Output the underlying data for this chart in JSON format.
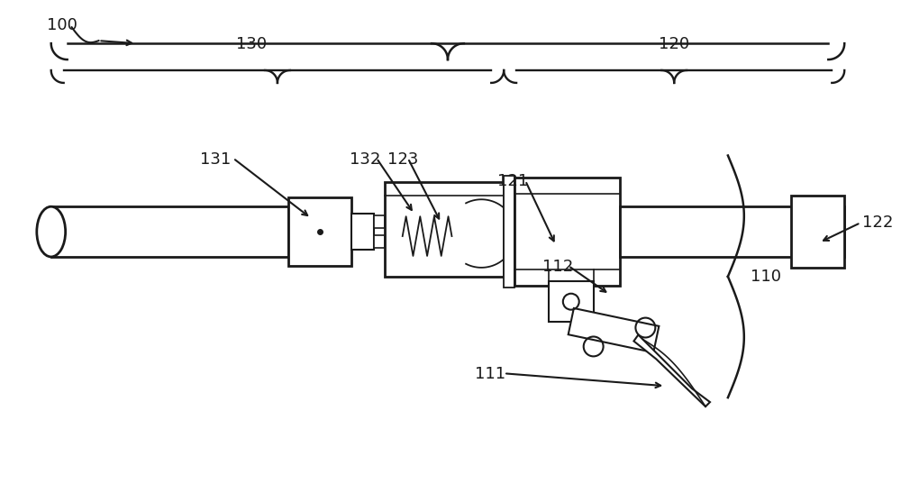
{
  "bg_color": "#ffffff",
  "line_color": "#1a1a1a",
  "lw": 1.5,
  "font_size": 13
}
